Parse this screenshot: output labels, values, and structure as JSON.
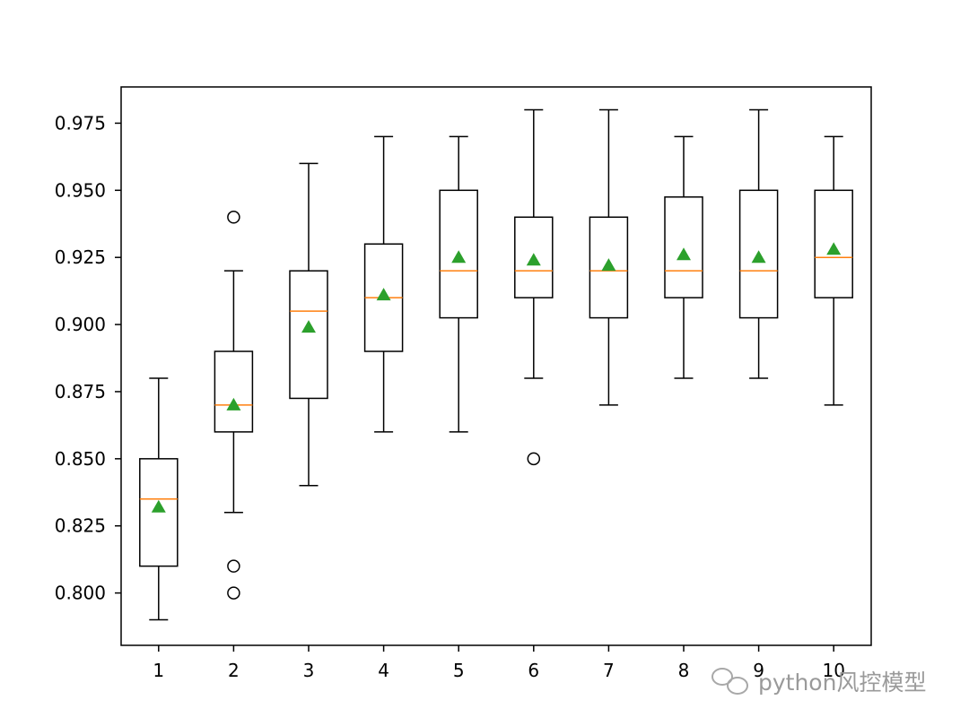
{
  "chart_data": {
    "type": "box",
    "title": "",
    "xlabel": "",
    "ylabel": "",
    "categories": [
      "1",
      "2",
      "3",
      "4",
      "5",
      "6",
      "7",
      "8",
      "9",
      "10"
    ],
    "ylim": [
      0.7805,
      0.9885
    ],
    "yticks": [
      "0.800",
      "0.825",
      "0.850",
      "0.875",
      "0.900",
      "0.925",
      "0.950",
      "0.975"
    ],
    "grid": false,
    "boxes": [
      {
        "category": "1",
        "whisker_low": 0.79,
        "q1": 0.81,
        "median": 0.835,
        "q3": 0.85,
        "whisker_high": 0.88,
        "mean": 0.832,
        "outliers": []
      },
      {
        "category": "2",
        "whisker_low": 0.83,
        "q1": 0.86,
        "median": 0.87,
        "q3": 0.89,
        "whisker_high": 0.92,
        "mean": 0.87,
        "outliers": [
          0.94,
          0.81,
          0.8
        ]
      },
      {
        "category": "3",
        "whisker_low": 0.84,
        "q1": 0.8725,
        "median": 0.905,
        "q3": 0.92,
        "whisker_high": 0.96,
        "mean": 0.899,
        "outliers": []
      },
      {
        "category": "4",
        "whisker_low": 0.86,
        "q1": 0.89,
        "median": 0.91,
        "q3": 0.93,
        "whisker_high": 0.97,
        "mean": 0.911,
        "outliers": []
      },
      {
        "category": "5",
        "whisker_low": 0.86,
        "q1": 0.9025,
        "median": 0.92,
        "q3": 0.95,
        "whisker_high": 0.97,
        "mean": 0.925,
        "outliers": []
      },
      {
        "category": "6",
        "whisker_low": 0.88,
        "q1": 0.91,
        "median": 0.92,
        "q3": 0.94,
        "whisker_high": 0.98,
        "mean": 0.924,
        "outliers": [
          0.85
        ]
      },
      {
        "category": "7",
        "whisker_low": 0.87,
        "q1": 0.9025,
        "median": 0.92,
        "q3": 0.94,
        "whisker_high": 0.98,
        "mean": 0.922,
        "outliers": []
      },
      {
        "category": "8",
        "whisker_low": 0.88,
        "q1": 0.91,
        "median": 0.92,
        "q3": 0.9475,
        "whisker_high": 0.97,
        "mean": 0.926,
        "outliers": []
      },
      {
        "category": "9",
        "whisker_low": 0.88,
        "q1": 0.9025,
        "median": 0.92,
        "q3": 0.95,
        "whisker_high": 0.98,
        "mean": 0.925,
        "outliers": []
      },
      {
        "category": "10",
        "whisker_low": 0.87,
        "q1": 0.91,
        "median": 0.925,
        "q3": 0.95,
        "whisker_high": 0.97,
        "mean": 0.928,
        "outliers": []
      }
    ],
    "colors": {
      "box": "#000000",
      "median": "#ff7f0e",
      "mean": "#2ca02c",
      "outlier": "#000000"
    }
  },
  "watermark": {
    "text": "python风控模型",
    "icon": "wechat-icon"
  }
}
